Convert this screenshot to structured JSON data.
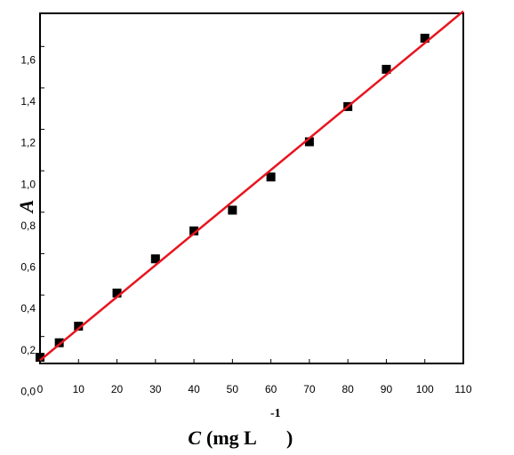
{
  "chart_data": {
    "type": "scatter",
    "y_label": "A",
    "x_label": {
      "var": "C",
      "unit": "(mg L",
      "sup": "-1",
      "close": ")"
    },
    "xlim": [
      0,
      110
    ],
    "ylim": [
      0.07,
      1.76
    ],
    "xticks": [
      0,
      10,
      20,
      30,
      40,
      50,
      60,
      70,
      80,
      90,
      100,
      110
    ],
    "yticks": [
      {
        "value": 0,
        "label": "0,0"
      },
      {
        "value": 0.2,
        "label": "0,2"
      },
      {
        "value": 0.4,
        "label": "0,4"
      },
      {
        "value": 0.6,
        "label": "0,6"
      },
      {
        "value": 0.8,
        "label": "0,8"
      },
      {
        "value": 1.0,
        "label": "1,0"
      },
      {
        "value": 1.2,
        "label": "1,2"
      },
      {
        "value": 1.4,
        "label": "1,4"
      },
      {
        "value": 1.6,
        "label": "1,6"
      }
    ],
    "series": [
      {
        "color": "#000000",
        "x": [
          0,
          5,
          10,
          20,
          30,
          40,
          50,
          60,
          70,
          80,
          90,
          100
        ],
        "values": [
          0.1,
          0.17,
          0.25,
          0.41,
          0.575,
          0.71,
          0.81,
          0.97,
          1.14,
          1.31,
          1.49,
          1.64
        ]
      },
      {
        "color": "#e8141e",
        "x": [
          0,
          110
        ],
        "values": [
          0.085,
          1.77
        ],
        "line": true
      }
    ]
  }
}
